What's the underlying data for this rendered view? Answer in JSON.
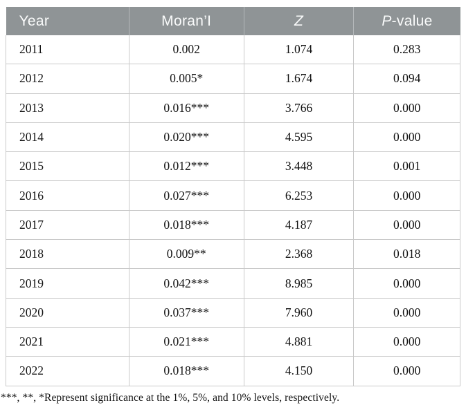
{
  "table": {
    "columns": [
      {
        "label": "Year"
      },
      {
        "label": "Moran’I"
      },
      {
        "label": "Z"
      },
      {
        "label_italic": "P",
        "label_rest": "-value"
      }
    ],
    "rows": [
      [
        "2011",
        "0.002",
        "1.074",
        "0.283"
      ],
      [
        "2012",
        "0.005*",
        "1.674",
        "0.094"
      ],
      [
        "2013",
        "0.016***",
        "3.766",
        "0.000"
      ],
      [
        "2014",
        "0.020***",
        "4.595",
        "0.000"
      ],
      [
        "2015",
        "0.012***",
        "3.448",
        "0.001"
      ],
      [
        "2016",
        "0.027***",
        "6.253",
        "0.000"
      ],
      [
        "2017",
        "0.018***",
        "4.187",
        "0.000"
      ],
      [
        "2018",
        "0.009**",
        "2.368",
        "0.018"
      ],
      [
        "2019",
        "0.042***",
        "8.985",
        "0.000"
      ],
      [
        "2020",
        "0.037***",
        "7.960",
        "0.000"
      ],
      [
        "2021",
        "0.021***",
        "4.881",
        "0.000"
      ],
      [
        "2022",
        "0.018***",
        "4.150",
        "0.000"
      ]
    ]
  },
  "footnote": "***, **, *Represent significance at the 1%, 5%, and 10% levels, respectively.",
  "colors": {
    "header_bg": "#8f9496",
    "header_text": "#fafbfb",
    "grid_line": "#c9c9c9",
    "body_text": "#121212"
  }
}
